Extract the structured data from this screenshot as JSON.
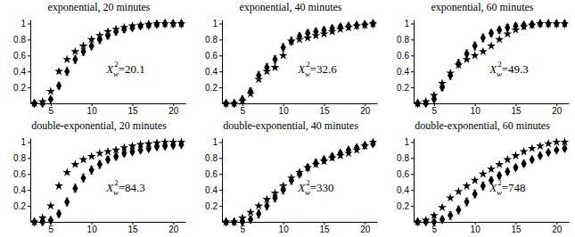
{
  "chart_data": [
    {
      "type": "scatter",
      "title": "exponential, 20 minutes",
      "x": [
        3,
        4,
        5,
        6,
        7,
        8,
        9,
        10,
        11,
        12,
        13,
        14,
        15,
        16,
        17,
        18,
        19,
        20,
        21
      ],
      "xlim": [
        2.5,
        21.5
      ],
      "ylim": [
        0,
        1.05
      ],
      "xticks": [
        5,
        10,
        15,
        20
      ],
      "yticks": [
        0.2,
        0.4,
        0.6,
        0.8,
        1
      ],
      "series": [
        {
          "marker": "star",
          "color": "#000000",
          "values": [
            0,
            0.02,
            0.15,
            0.4,
            0.55,
            0.65,
            0.72,
            0.8,
            0.85,
            0.9,
            0.93,
            0.95,
            0.97,
            0.98,
            0.99,
            1,
            1,
            1,
            1
          ]
        },
        {
          "marker": "diamond",
          "color": "#000000",
          "values": [
            0,
            0,
            0.05,
            0.22,
            0.4,
            0.55,
            0.65,
            0.72,
            0.8,
            0.85,
            0.9,
            0.93,
            0.95,
            0.97,
            0.98,
            0.99,
            1,
            1,
            1
          ],
          "errors": [
            0,
            0,
            0.02,
            0.04,
            0.05,
            0.05,
            0.05,
            0.05,
            0.05,
            0.04,
            0.04,
            0.04,
            0.03,
            0.03,
            0.03,
            0.02,
            0.02,
            0.02,
            0.02
          ]
        }
      ],
      "annotation": {
        "base": "X",
        "sub": "w",
        "sup": "2",
        "text": "=20.1"
      }
    },
    {
      "type": "scatter",
      "title": "exponential, 40 minutes",
      "x": [
        3,
        4,
        5,
        6,
        7,
        8,
        9,
        10,
        11,
        12,
        13,
        14,
        15,
        16,
        17,
        18,
        19,
        20,
        21
      ],
      "xlim": [
        2.5,
        21.5
      ],
      "ylim": [
        0,
        1.05
      ],
      "xticks": [
        5,
        10,
        15,
        20
      ],
      "yticks": [
        0.2,
        0.4,
        0.6,
        0.8,
        1
      ],
      "series": [
        {
          "marker": "star",
          "color": "#000000",
          "values": [
            0,
            0,
            0.03,
            0.12,
            0.3,
            0.4,
            0.45,
            0.6,
            0.78,
            0.8,
            0.82,
            0.85,
            0.87,
            0.9,
            0.93,
            0.95,
            0.97,
            0.98,
            1
          ]
        },
        {
          "marker": "diamond",
          "color": "#000000",
          "values": [
            0,
            0,
            0.05,
            0.15,
            0.35,
            0.45,
            0.55,
            0.7,
            0.78,
            0.84,
            0.88,
            0.9,
            0.92,
            0.94,
            0.96,
            0.97,
            0.98,
            0.99,
            1
          ],
          "errors": [
            0,
            0,
            0.02,
            0.04,
            0.05,
            0.05,
            0.05,
            0.05,
            0.05,
            0.04,
            0.04,
            0.04,
            0.03,
            0.03,
            0.03,
            0.02,
            0.02,
            0.02,
            0.02
          ]
        }
      ],
      "annotation": {
        "base": "X",
        "sub": "w",
        "sup": "2",
        "text": "=32.6"
      }
    },
    {
      "type": "scatter",
      "title": "exponential, 60 minutes",
      "x": [
        3,
        4,
        5,
        6,
        7,
        8,
        9,
        10,
        11,
        12,
        13,
        14,
        15,
        16,
        17,
        18,
        19,
        20,
        21
      ],
      "xlim": [
        2.5,
        21.5
      ],
      "ylim": [
        0,
        1.05
      ],
      "xticks": [
        5,
        10,
        15,
        20
      ],
      "yticks": [
        0.2,
        0.4,
        0.6,
        0.8,
        1
      ],
      "series": [
        {
          "marker": "star",
          "color": "#000000",
          "values": [
            0,
            0.02,
            0.1,
            0.25,
            0.38,
            0.48,
            0.55,
            0.6,
            0.65,
            0.72,
            0.8,
            0.87,
            0.92,
            0.96,
            0.98,
            1,
            1,
            1,
            1
          ]
        },
        {
          "marker": "diamond",
          "color": "#000000",
          "values": [
            0,
            0,
            0.05,
            0.2,
            0.35,
            0.5,
            0.62,
            0.72,
            0.82,
            0.88,
            0.92,
            0.95,
            0.97,
            0.98,
            0.99,
            1,
            1,
            1,
            1
          ],
          "errors": [
            0,
            0,
            0.02,
            0.04,
            0.05,
            0.05,
            0.05,
            0.05,
            0.05,
            0.04,
            0.04,
            0.04,
            0.03,
            0.03,
            0.03,
            0.02,
            0.02,
            0.02,
            0.02
          ]
        }
      ],
      "annotation": {
        "base": "X",
        "sub": "w",
        "sup": "2",
        "text": "=49.3"
      }
    },
    {
      "type": "scatter",
      "title": "double-exponential, 20 minutes",
      "x": [
        3,
        4,
        5,
        6,
        7,
        8,
        9,
        10,
        11,
        12,
        13,
        14,
        15,
        16,
        17,
        18,
        19,
        20,
        21
      ],
      "xlim": [
        2.5,
        21.5
      ],
      "ylim": [
        0,
        1.05
      ],
      "xticks": [
        5,
        10,
        15,
        20
      ],
      "yticks": [
        0.2,
        0.4,
        0.6,
        0.8,
        1
      ],
      "series": [
        {
          "marker": "star",
          "color": "#000000",
          "values": [
            0,
            0.05,
            0.2,
            0.45,
            0.62,
            0.72,
            0.78,
            0.82,
            0.86,
            0.88,
            0.9,
            0.93,
            0.95,
            0.97,
            0.98,
            0.99,
            1,
            1,
            1
          ]
        },
        {
          "marker": "diamond",
          "color": "#000000",
          "values": [
            0,
            0,
            0.02,
            0.1,
            0.25,
            0.42,
            0.55,
            0.65,
            0.72,
            0.78,
            0.82,
            0.86,
            0.88,
            0.9,
            0.92,
            0.94,
            0.95,
            0.96,
            0.97
          ],
          "errors": [
            0,
            0,
            0.02,
            0.04,
            0.05,
            0.05,
            0.05,
            0.05,
            0.05,
            0.04,
            0.04,
            0.04,
            0.03,
            0.03,
            0.03,
            0.02,
            0.02,
            0.02,
            0.02
          ]
        }
      ],
      "annotation": {
        "base": "X",
        "sub": "w",
        "sup": "2",
        "text": "=84.3"
      }
    },
    {
      "type": "scatter",
      "title": "double-exponential, 40 minutes",
      "x": [
        3,
        4,
        5,
        6,
        7,
        8,
        9,
        10,
        11,
        12,
        13,
        14,
        15,
        16,
        17,
        18,
        19,
        20,
        21
      ],
      "xlim": [
        2.5,
        21.5
      ],
      "ylim": [
        0,
        1.05
      ],
      "xticks": [
        5,
        10,
        15,
        20
      ],
      "yticks": [
        0.2,
        0.4,
        0.6,
        0.8,
        1
      ],
      "series": [
        {
          "marker": "star",
          "color": "#000000",
          "values": [
            0,
            0,
            0.05,
            0.12,
            0.2,
            0.28,
            0.36,
            0.45,
            0.55,
            0.62,
            0.68,
            0.72,
            0.76,
            0.8,
            0.83,
            0.86,
            0.9,
            0.95,
            1
          ]
        },
        {
          "marker": "diamond",
          "color": "#000000",
          "values": [
            0,
            0,
            0,
            0.03,
            0.1,
            0.2,
            0.3,
            0.4,
            0.52,
            0.6,
            0.68,
            0.74,
            0.78,
            0.82,
            0.86,
            0.9,
            0.93,
            0.96,
            0.98
          ],
          "errors": [
            0,
            0,
            0.02,
            0.04,
            0.05,
            0.05,
            0.05,
            0.05,
            0.05,
            0.04,
            0.04,
            0.04,
            0.03,
            0.03,
            0.03,
            0.02,
            0.02,
            0.02,
            0.02
          ]
        }
      ],
      "annotation": {
        "base": "X",
        "sub": "w",
        "sup": "2",
        "text": "=330"
      }
    },
    {
      "type": "scatter",
      "title": "double-exponential, 60 minutes",
      "x": [
        3,
        4,
        5,
        6,
        7,
        8,
        9,
        10,
        11,
        12,
        13,
        14,
        15,
        16,
        17,
        18,
        19,
        20,
        21
      ],
      "xlim": [
        2.5,
        21.5
      ],
      "ylim": [
        0,
        1.05
      ],
      "xticks": [
        5,
        10,
        15,
        20
      ],
      "yticks": [
        0.2,
        0.4,
        0.6,
        0.8,
        1
      ],
      "series": [
        {
          "marker": "star",
          "color": "#000000",
          "values": [
            0,
            0.02,
            0.08,
            0.18,
            0.3,
            0.38,
            0.45,
            0.52,
            0.6,
            0.66,
            0.72,
            0.78,
            0.83,
            0.88,
            0.92,
            0.95,
            0.98,
            1,
            1
          ]
        },
        {
          "marker": "diamond",
          "color": "#000000",
          "values": [
            0,
            0,
            0,
            0.03,
            0.08,
            0.15,
            0.25,
            0.35,
            0.45,
            0.52,
            0.58,
            0.63,
            0.68,
            0.73,
            0.78,
            0.83,
            0.87,
            0.9,
            0.92
          ],
          "errors": [
            0,
            0,
            0.02,
            0.04,
            0.05,
            0.05,
            0.05,
            0.05,
            0.05,
            0.04,
            0.04,
            0.04,
            0.03,
            0.03,
            0.03,
            0.02,
            0.02,
            0.02,
            0.02
          ]
        }
      ],
      "annotation": {
        "base": "X",
        "sub": "w",
        "sup": "2",
        "text": "=748"
      }
    }
  ]
}
